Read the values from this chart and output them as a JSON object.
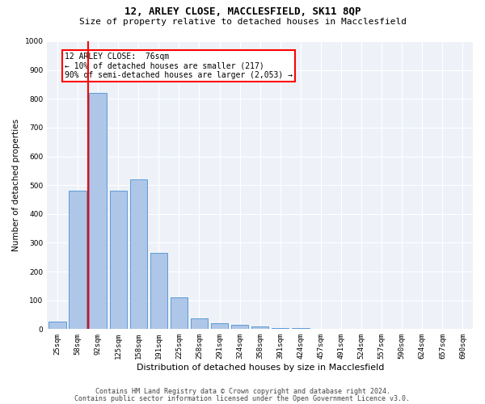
{
  "title": "12, ARLEY CLOSE, MACCLESFIELD, SK11 8QP",
  "subtitle": "Size of property relative to detached houses in Macclesfield",
  "xlabel": "Distribution of detached houses by size in Macclesfield",
  "ylabel": "Number of detached properties",
  "bar_labels": [
    "25sqm",
    "58sqm",
    "92sqm",
    "125sqm",
    "158sqm",
    "191sqm",
    "225sqm",
    "258sqm",
    "291sqm",
    "324sqm",
    "358sqm",
    "391sqm",
    "424sqm",
    "457sqm",
    "491sqm",
    "524sqm",
    "557sqm",
    "590sqm",
    "624sqm",
    "657sqm",
    "690sqm"
  ],
  "bar_values": [
    27,
    480,
    820,
    480,
    520,
    265,
    110,
    38,
    20,
    15,
    8,
    5,
    3,
    2,
    1,
    1,
    0,
    0,
    0,
    0,
    0
  ],
  "bar_color": "#aec6e8",
  "bar_edge_color": "#5b9bd5",
  "vline_color": "red",
  "vline_pos": 1.5,
  "annotation_text": "12 ARLEY CLOSE:  76sqm\n← 10% of detached houses are smaller (217)\n90% of semi-detached houses are larger (2,053) →",
  "annotation_box_color": "white",
  "annotation_box_edge": "red",
  "ylim": [
    0,
    1000
  ],
  "yticks": [
    0,
    100,
    200,
    300,
    400,
    500,
    600,
    700,
    800,
    900,
    1000
  ],
  "footer1": "Contains HM Land Registry data © Crown copyright and database right 2024.",
  "footer2": "Contains public sector information licensed under the Open Government Licence v3.0.",
  "bg_color": "#eef2f8",
  "grid_color": "white",
  "title_fontsize": 9,
  "subtitle_fontsize": 8,
  "tick_fontsize": 6.5,
  "ylabel_fontsize": 7.5,
  "xlabel_fontsize": 8,
  "footer_fontsize": 6,
  "annot_fontsize": 7
}
